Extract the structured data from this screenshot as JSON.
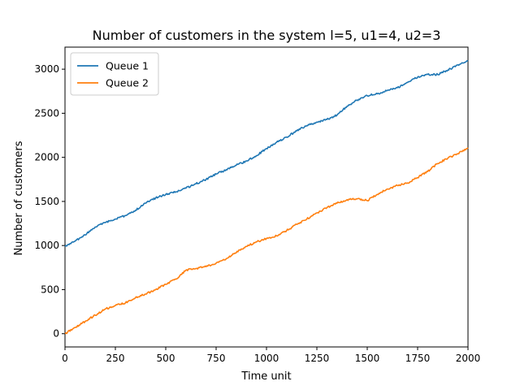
{
  "chart_data": {
    "type": "line",
    "title": "Number of customers in the system l=5, u1=4, u2=3",
    "xlabel": "Time unit",
    "ylabel": "Number of customers",
    "xlim": [
      0,
      2000
    ],
    "ylim": [
      -150,
      3250
    ],
    "x_ticks": [
      0,
      250,
      500,
      750,
      1000,
      1250,
      1500,
      1750,
      2000
    ],
    "y_ticks": [
      0,
      500,
      1000,
      1500,
      2000,
      2500,
      3000
    ],
    "grid": false,
    "legend_position": "top-left",
    "series": [
      {
        "name": "Queue 1",
        "color": "#1f77b4",
        "x": [
          0,
          50,
          100,
          150,
          200,
          250,
          300,
          350,
          400,
          450,
          500,
          550,
          600,
          650,
          700,
          750,
          800,
          850,
          900,
          950,
          1000,
          1050,
          1100,
          1150,
          1200,
          1250,
          1300,
          1350,
          1400,
          1450,
          1500,
          1550,
          1600,
          1650,
          1700,
          1750,
          1800,
          1850,
          1900,
          1950,
          2000
        ],
        "values": [
          990,
          1050,
          1120,
          1210,
          1260,
          1300,
          1340,
          1400,
          1480,
          1540,
          1580,
          1610,
          1650,
          1700,
          1750,
          1810,
          1860,
          1910,
          1960,
          2020,
          2100,
          2170,
          2230,
          2300,
          2360,
          2400,
          2430,
          2480,
          2580,
          2650,
          2700,
          2720,
          2760,
          2790,
          2850,
          2910,
          2940,
          2940,
          2990,
          3050,
          3090
        ]
      },
      {
        "name": "Queue 2",
        "color": "#ff7f0e",
        "x": [
          0,
          50,
          100,
          150,
          200,
          250,
          300,
          350,
          400,
          450,
          500,
          550,
          600,
          650,
          700,
          750,
          800,
          850,
          900,
          950,
          1000,
          1050,
          1100,
          1150,
          1200,
          1250,
          1300,
          1350,
          1400,
          1450,
          1500,
          1550,
          1600,
          1650,
          1700,
          1750,
          1800,
          1850,
          1900,
          1950,
          2000
        ],
        "values": [
          0,
          70,
          140,
          210,
          280,
          320,
          350,
          410,
          450,
          500,
          560,
          620,
          720,
          740,
          760,
          800,
          850,
          920,
          990,
          1040,
          1080,
          1110,
          1170,
          1240,
          1300,
          1370,
          1430,
          1480,
          1520,
          1530,
          1510,
          1580,
          1640,
          1680,
          1710,
          1770,
          1840,
          1930,
          1990,
          2040,
          2110
        ]
      }
    ]
  }
}
